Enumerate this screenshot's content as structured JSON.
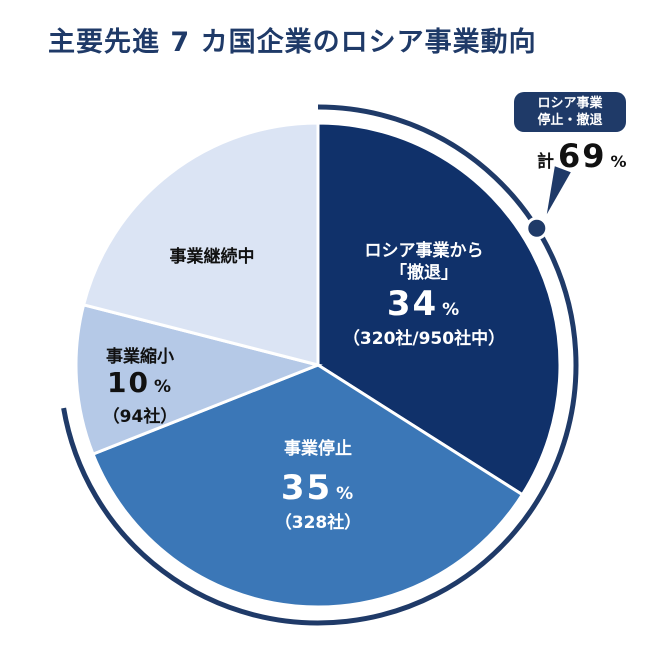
{
  "title": "主要先進 7 カ国企業のロシア事業動向",
  "colors": {
    "title": "#1f3a68",
    "withdrawal": "#10316a",
    "suspension": "#3b77b7",
    "reduction": "#b5c9e7",
    "continuation": "#dbe4f4",
    "arc": "#1f3a68"
  },
  "chart_data": {
    "type": "pie",
    "start_angle_deg": 0,
    "direction": "clockwise",
    "slices": [
      {
        "key": "withdrawal",
        "label_lines": [
          "ロシア事業から",
          "「撤退」"
        ],
        "value": 34,
        "unit": "%",
        "count": "（320社/950社中）"
      },
      {
        "key": "suspension",
        "label_lines": [
          "事業停止"
        ],
        "value": 35,
        "unit": "%",
        "count": "（328社）"
      },
      {
        "key": "reduction",
        "label_lines": [
          "事業縮小"
        ],
        "value": 10,
        "unit": "%",
        "count": "（94社）"
      },
      {
        "key": "continuation",
        "label_lines": [
          "事業継続中"
        ],
        "value": 21
      }
    ],
    "callout": {
      "badge_lines": [
        "ロシア事業",
        "停止・撤退"
      ],
      "prefix": "計",
      "value": 69,
      "unit": "%"
    }
  }
}
